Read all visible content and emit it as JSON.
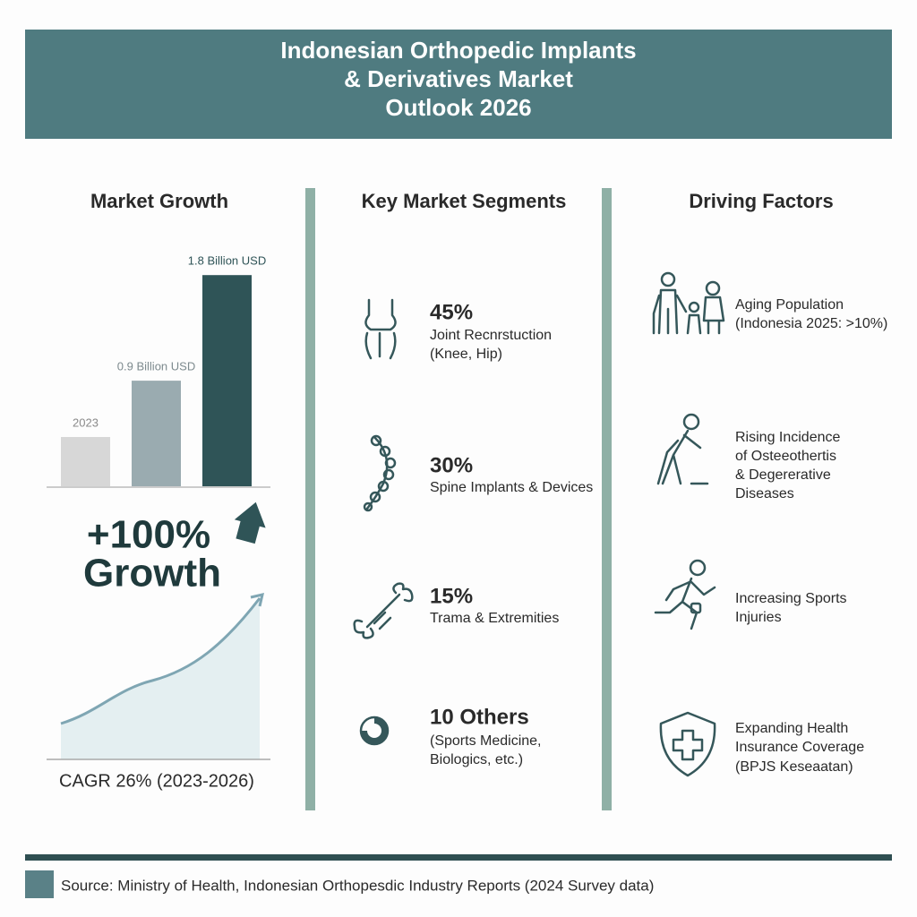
{
  "header": {
    "title_lines": [
      "Indonesian Orthopedic Implants",
      "& Derivatives Market",
      "Outlook 2026"
    ]
  },
  "market_growth": {
    "heading": "Market Growth",
    "bars": [
      {
        "label": "2023",
        "value": 0.42
      },
      {
        "label": "0.9 Billion USD",
        "value": 0.9
      },
      {
        "label": "1.8 Billion USD",
        "value": 1.8
      }
    ],
    "growth_lines": [
      "+100%",
      "Growth"
    ],
    "cagr": "CAGR 26% (2023-2026)"
  },
  "segments": {
    "heading": "Key Market Segments",
    "items": [
      {
        "headline": "45%",
        "lines": [
          "Joint Recnrstuction",
          "(Knee, Hip)"
        ]
      },
      {
        "headline": "30%",
        "lines": [
          "Spine Implants & Devices"
        ]
      },
      {
        "headline": "15%",
        "lines": [
          "Trama & Extremities"
        ]
      },
      {
        "headline": "10  Others",
        "lines": [
          "(Sports Medicine,",
          "Biologics, etc.)"
        ]
      }
    ]
  },
  "drivers": {
    "heading": "Driving Factors",
    "items": [
      {
        "lines": [
          "Aging Population",
          "(Indonesia 2025: >10%)"
        ]
      },
      {
        "lines": [
          "Rising Incidence",
          "of Osteeothertis",
          "& Degererative",
          "Diseases"
        ]
      },
      {
        "lines": [
          "Increasing Sports",
          "Injuries"
        ]
      },
      {
        "lines": [
          "Expanding Health",
          "Insurance Coverage",
          "(BPJS Keseaatan)"
        ]
      }
    ]
  },
  "source": "Source: Ministry of Health, Indonesian Orthopesdic Industry Reports (2024 Survey data)"
}
